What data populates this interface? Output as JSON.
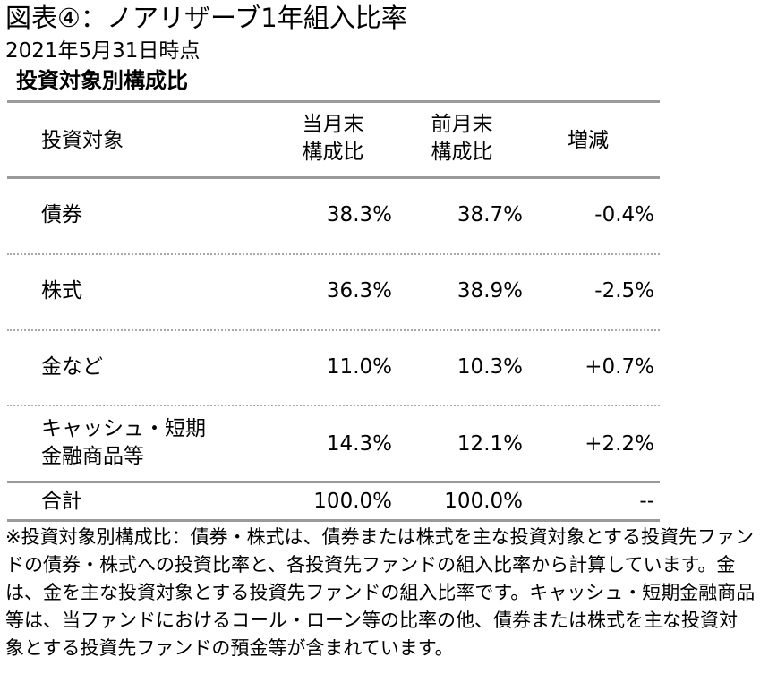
{
  "title": "図表④：ノアリザーブ1年組入比率",
  "date": "2021年5月31日時点",
  "subtitle": "投資対象別構成比",
  "table": {
    "headers": {
      "target": "投資対象",
      "current_line1": "当月末",
      "current_line2": "構成比",
      "previous_line1": "前月末",
      "previous_line2": "構成比",
      "change": "増減"
    },
    "rows": [
      {
        "label1": "債券",
        "label2": "",
        "current": "38.3%",
        "previous": "38.7%",
        "change": "-0.4%"
      },
      {
        "label1": "株式",
        "label2": "",
        "current": "36.3%",
        "previous": "38.9%",
        "change": "-2.5%"
      },
      {
        "label1": "金など",
        "label2": "",
        "current": "11.0%",
        "previous": "10.3%",
        "change": "+0.7%"
      },
      {
        "label1": "キャッシュ・短期",
        "label2": "金融商品等",
        "current": "14.3%",
        "previous": "12.1%",
        "change": "+2.2%"
      }
    ],
    "total": {
      "label": "合計",
      "current": "100.0%",
      "previous": "100.0%",
      "change": "--"
    }
  },
  "note": "※投資対象別構成比：債券・株式は、債券または株式を主な投資対象とする投資先ファンドの債券・株式への投資比率と、各投資先ファンドの組入比率から計算しています。金は、金を主な投資対象とする投資先ファンドの組入比率です。キャッシュ・短期金融商品等は、当ファンドにおけるコール・ローン等の比率の他、債券または株式を主な投資対象とする投資先ファンドの預金等が含まれています。"
}
